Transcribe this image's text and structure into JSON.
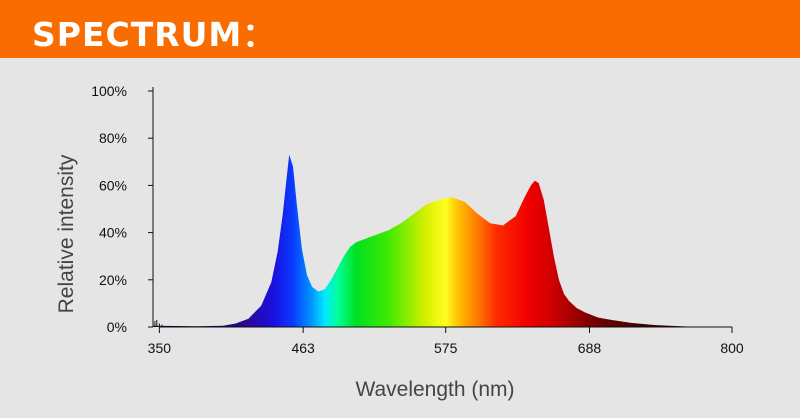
{
  "header": {
    "title": "SPECTRUM："
  },
  "colors": {
    "header_bg": "#f96c00",
    "background": "#e5e5e5",
    "axis": "#111111"
  },
  "chart_data": {
    "type": "area",
    "title": "",
    "xlabel": "Wavelength (nm)",
    "ylabel": "Relative intensity",
    "xlim": [
      345,
      800
    ],
    "ylim": [
      0,
      100
    ],
    "xticks": [
      350,
      463,
      575,
      688,
      800
    ],
    "xtick_labels": [
      "350",
      "463",
      "575",
      "688",
      "800"
    ],
    "yticks": [
      0,
      20,
      40,
      60,
      80,
      100
    ],
    "ytick_labels": [
      "0%",
      "20%",
      "40%",
      "60%",
      "80%",
      "100%"
    ],
    "grid": false,
    "fill": "spectral-color-gradient",
    "series": [
      {
        "x": [
          345,
          380,
          400,
          410,
          420,
          430,
          438,
          443,
          447,
          450,
          452,
          455,
          458,
          462,
          466,
          470,
          475,
          480,
          485,
          490,
          495,
          500,
          505,
          510,
          515,
          520,
          530,
          540,
          550,
          560,
          570,
          580,
          590,
          600,
          610,
          620,
          630,
          637,
          642,
          645,
          648,
          652,
          656,
          660,
          664,
          668,
          672,
          678,
          685,
          695,
          705,
          720,
          740,
          760,
          775
        ],
        "y": [
          0.5,
          0.3,
          0.5,
          1.5,
          3.5,
          9,
          19,
          32,
          48,
          63,
          73,
          68,
          52,
          33,
          22,
          17,
          15,
          16,
          20,
          25,
          30,
          34,
          36,
          37,
          38,
          39,
          41,
          44,
          48,
          52,
          54,
          55,
          53,
          48,
          44,
          43,
          47,
          55,
          60,
          62,
          61,
          54,
          42,
          30,
          20,
          14,
          11,
          8,
          6,
          4,
          3,
          1.8,
          0.8,
          0.3,
          0
        ]
      }
    ]
  }
}
